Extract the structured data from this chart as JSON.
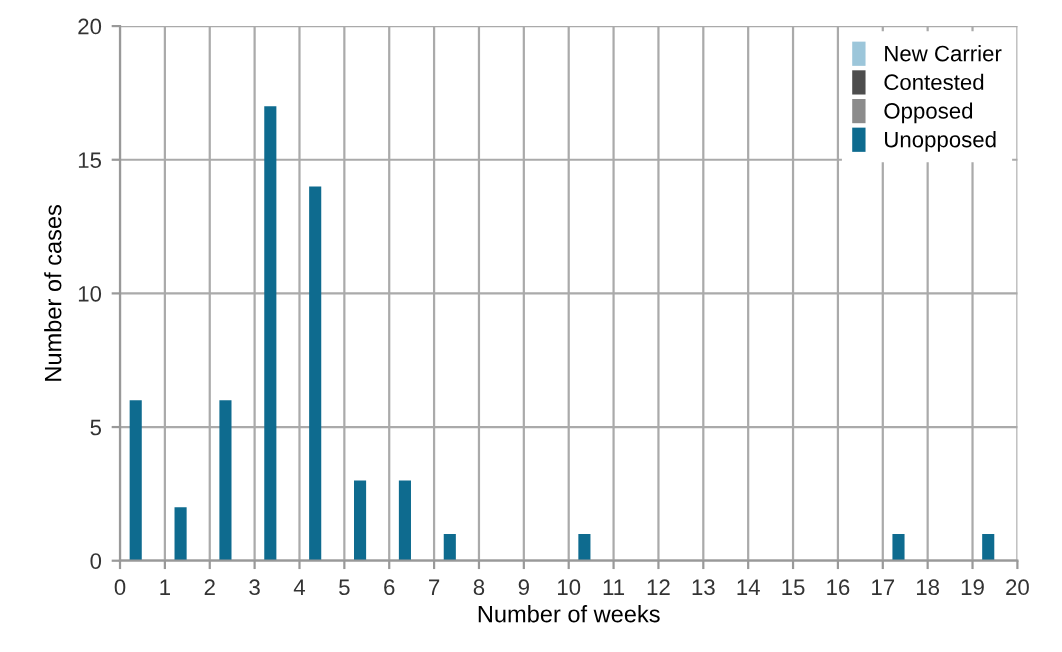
{
  "chart_data": {
    "type": "bar",
    "xlabel": "Number of weeks",
    "ylabel": "Number of cases",
    "x": [
      0.35,
      1.35,
      2.35,
      3.35,
      4.35,
      5.35,
      6.35,
      7.35,
      8.35,
      9.35,
      10.35,
      11.35,
      12.35,
      13.35,
      14.35,
      15.35,
      16.35,
      17.35,
      18.35,
      19.35
    ],
    "series": [
      {
        "name": "Unopposed",
        "color": "#0e6b8f",
        "values": [
          6,
          2,
          6,
          17,
          14,
          3,
          3,
          1,
          0,
          0,
          1,
          0,
          0,
          0,
          0,
          0,
          0,
          1,
          0,
          1
        ]
      },
      {
        "name": "Opposed",
        "color": "#8c8c8c",
        "values": [
          0,
          0,
          0,
          0,
          0,
          0,
          0,
          0,
          0,
          0,
          0,
          0,
          0,
          0,
          0,
          0,
          0,
          0,
          0,
          0
        ]
      },
      {
        "name": "Contested",
        "color": "#4d4d4d",
        "values": [
          0,
          0,
          0,
          0,
          0,
          0,
          0,
          0,
          0,
          0,
          0,
          0,
          0,
          0,
          0,
          0,
          0,
          0,
          0,
          0
        ]
      },
      {
        "name": "New Carrier",
        "color": "#9cc6da",
        "values": [
          0,
          0,
          0,
          0,
          0,
          0,
          0,
          0,
          0,
          0,
          0,
          0,
          0,
          0,
          0,
          0,
          0,
          0,
          0,
          0
        ]
      }
    ],
    "xlim": [
      0,
      20
    ],
    "xticks": [
      0,
      1,
      2,
      3,
      4,
      5,
      6,
      7,
      8,
      9,
      10,
      11,
      12,
      13,
      14,
      15,
      16,
      17,
      18,
      19,
      20
    ],
    "ylim": [
      0,
      20
    ],
    "yticks": [
      0,
      5,
      10,
      15,
      20
    ],
    "grid": true,
    "legend": "top right"
  }
}
